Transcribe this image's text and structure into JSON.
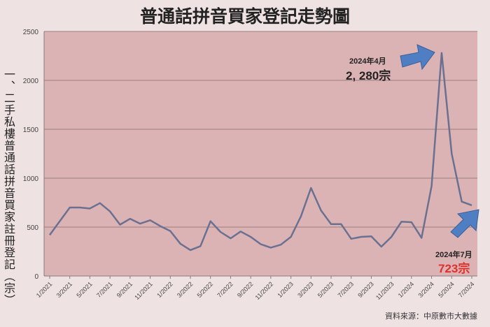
{
  "chart_data": {
    "type": "line",
    "title": "普通話拼音買家登記走勢圖",
    "ylabel": "一、二手私樓普通話拼音買家註冊登記（宗）",
    "xlabel": "",
    "ylim": [
      0,
      2500
    ],
    "yticks": [
      0,
      500,
      1000,
      1500,
      2000,
      2500
    ],
    "grid": true,
    "x": [
      "1/2021",
      "2/2021",
      "3/2021",
      "4/2021",
      "5/2021",
      "6/2021",
      "7/2021",
      "8/2021",
      "9/2021",
      "10/2021",
      "11/2021",
      "12/2021",
      "1/2022",
      "2/2022",
      "3/2022",
      "4/2022",
      "5/2022",
      "6/2022",
      "7/2022",
      "8/2022",
      "9/2022",
      "10/2022",
      "11/2022",
      "12/2022",
      "1/2023",
      "2/2023",
      "3/2023",
      "4/2023",
      "5/2023",
      "6/2023",
      "7/2023",
      "8/2023",
      "9/2023",
      "10/2023",
      "11/2023",
      "12/2023",
      "1/2024",
      "2/2024",
      "3/2024",
      "4/2024",
      "5/2024",
      "6/2024",
      "7/2024"
    ],
    "xtick_labels": [
      "1/2021",
      "3/2021",
      "5/2021",
      "7/2021",
      "9/2021",
      "11/2021",
      "1/2022",
      "3/2022",
      "5/2022",
      "7/2022",
      "9/2022",
      "11/2022",
      "1/2023",
      "3/2023",
      "5/2023",
      "7/2023",
      "9/2023",
      "11/2023",
      "1/2024",
      "3/2024",
      "5/2024",
      "7/2024"
    ],
    "values": [
      420,
      560,
      700,
      700,
      690,
      745,
      660,
      525,
      585,
      535,
      570,
      510,
      460,
      330,
      265,
      305,
      560,
      450,
      385,
      455,
      400,
      325,
      290,
      320,
      400,
      610,
      900,
      670,
      530,
      530,
      380,
      400,
      405,
      300,
      400,
      555,
      550,
      390,
      920,
      2280,
      1250,
      760,
      723
    ],
    "annotations": [
      {
        "date": "2024年4月",
        "value": "2, 280宗"
      },
      {
        "date": "2024年7月",
        "value": "723宗"
      }
    ],
    "source": "資料來源：中原數市大數據",
    "colors": {
      "line": "#6a7190",
      "plot_bg": "#dcb3b5",
      "arrow": "#4f7fc2",
      "highlight": "#e0302a"
    }
  }
}
